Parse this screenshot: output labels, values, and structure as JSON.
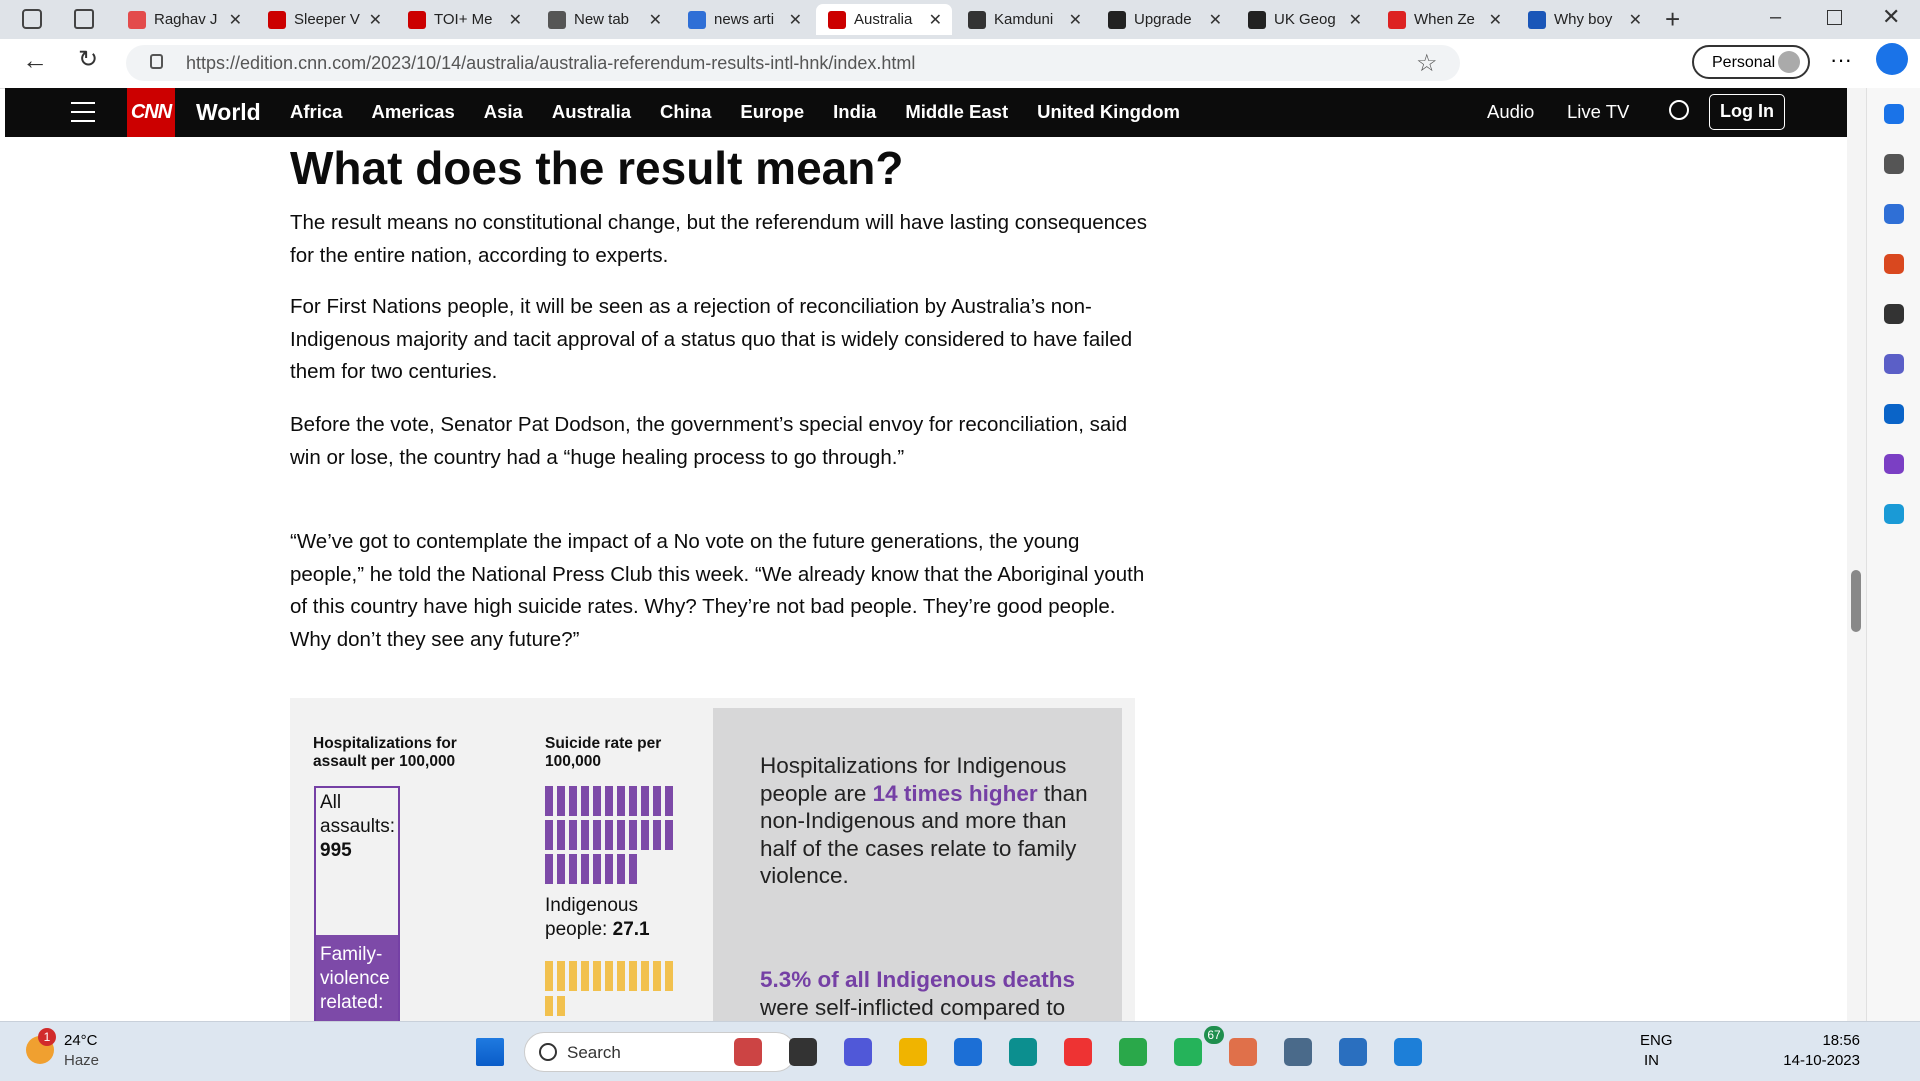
{
  "browser": {
    "tabs": [
      "Raghav J",
      "Sleeper V",
      "TOI+ Me",
      "New tab",
      "news arti",
      "Australia",
      "Kamduni",
      "Upgrade",
      "UK Geog",
      "When Ze",
      "Why boy"
    ],
    "url": "https://edition.cnn.com/2023/10/14/australia/australia-referendum-results-intl-hnk/index.html",
    "profile": "Personal"
  },
  "nav": {
    "logo": "CNN",
    "section": "World",
    "links": [
      "Africa",
      "Americas",
      "Asia",
      "Australia",
      "China",
      "Europe",
      "India",
      "Middle East",
      "United Kingdom"
    ],
    "audio": "Audio",
    "live_tv": "Live TV",
    "login": "Log In"
  },
  "article": {
    "heading": "What does the result mean?",
    "paragraphs": [
      "The result means no constitutional change, but the referendum will have lasting consequences for the entire nation, according to experts.",
      "For First Nations people, it will be seen as a rejection of reconciliation by Australia’s non-Indigenous majority and tacit approval of a status quo that is widely considered to have failed them for two centuries.",
      "Before the vote, Senator Pat Dodson, the government’s special envoy for reconciliation, said win or lose, the country had a “huge healing process to go through.”",
      "“We’ve got to contemplate the impact of a No vote on the future generations, the young people,” he told the National Press Club this week. “We already know that the Aboriginal youth of this country have high suicide rates. Why? They’re not bad people. They’re good people. Why don’t they see any future?”"
    ]
  },
  "infographic": {
    "col1_title": "Hospitalizations for assault per 100,000",
    "all_label": "All assaults:",
    "all_value": "995",
    "family_label": "Family-violence related:",
    "col2_title": "Suicide rate per 100,000",
    "indig_label": "Indigenous people:",
    "indig_value": "27.1",
    "note1": [
      "Hospitalizations for Indigenous people are ",
      "14 times higher",
      " than non-Indigenous and more than half of the cases relate to family violence."
    ],
    "note2": [
      "5.3% of all Indigenous deaths",
      " were self-inflicted compared to"
    ]
  },
  "taskbar": {
    "weather_badge": "1",
    "temp": "24°C",
    "condition": "Haze",
    "search": "Search",
    "whatsapp_badge": "67",
    "lang": "ENG",
    "region": "IN",
    "time": "18:56",
    "date": "14-10-2023"
  }
}
